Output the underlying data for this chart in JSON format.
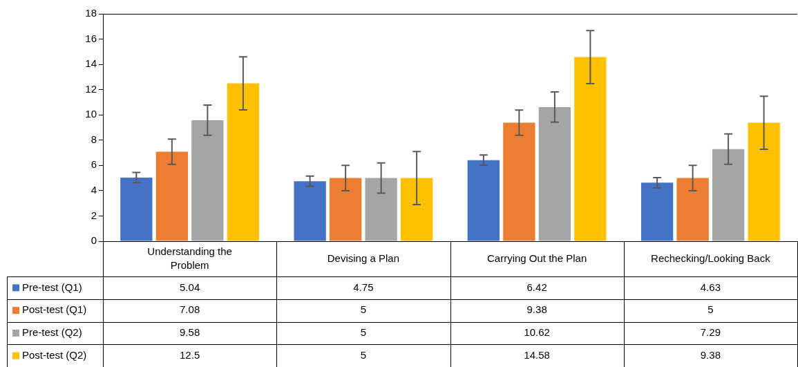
{
  "chart_data": {
    "type": "bar",
    "categories": [
      "Understanding the Problem",
      "Devising a Plan",
      "Carrying Out the Plan",
      "Rechecking/Looking Back"
    ],
    "series": [
      {
        "name": "Pre-test (Q1)",
        "color": "#4472c4",
        "values": [
          5.04,
          4.75,
          6.42,
          4.63
        ],
        "errors": [
          0.4,
          0.4,
          0.4,
          0.4
        ]
      },
      {
        "name": "Post-test (Q1)",
        "color": "#ed7d31",
        "values": [
          7.08,
          5,
          9.38,
          5
        ],
        "errors": [
          1.0,
          1.0,
          1.0,
          1.0
        ]
      },
      {
        "name": "Pre-test (Q2)",
        "color": "#a5a5a5",
        "values": [
          9.58,
          5,
          10.62,
          7.29
        ],
        "errors": [
          1.2,
          1.2,
          1.2,
          1.2
        ]
      },
      {
        "name": "Post-test (Q2)",
        "color": "#ffc000",
        "values": [
          12.5,
          5,
          14.58,
          9.38
        ],
        "errors": [
          2.1,
          2.1,
          2.1,
          2.1
        ]
      }
    ],
    "ylim": [
      0,
      18
    ],
    "yticks": [
      0,
      2,
      4,
      6,
      8,
      10,
      12,
      14,
      16,
      18
    ],
    "grid": false,
    "legend": "bottom left",
    "data_labels": true
  }
}
